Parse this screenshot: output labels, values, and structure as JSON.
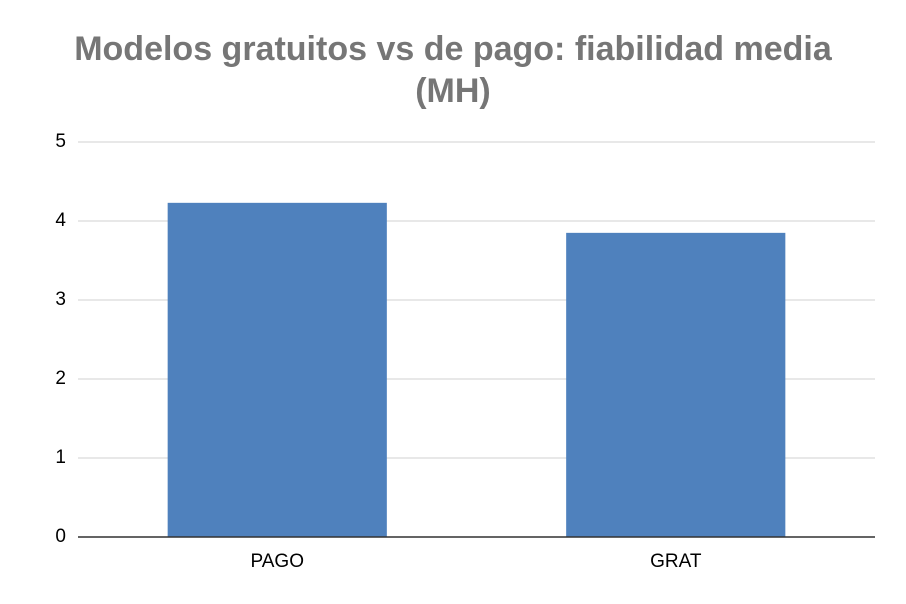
{
  "chart_data": {
    "type": "bar",
    "title": "Modelos gratuitos vs de pago: fiabilidad media (MH)",
    "categories": [
      "PAGO",
      "GRAT"
    ],
    "values": [
      4.23,
      3.85
    ],
    "color": "#4f81bd",
    "ylim": [
      0,
      5
    ],
    "yticks": [
      0,
      1,
      2,
      3,
      4,
      5
    ],
    "grid": true
  }
}
